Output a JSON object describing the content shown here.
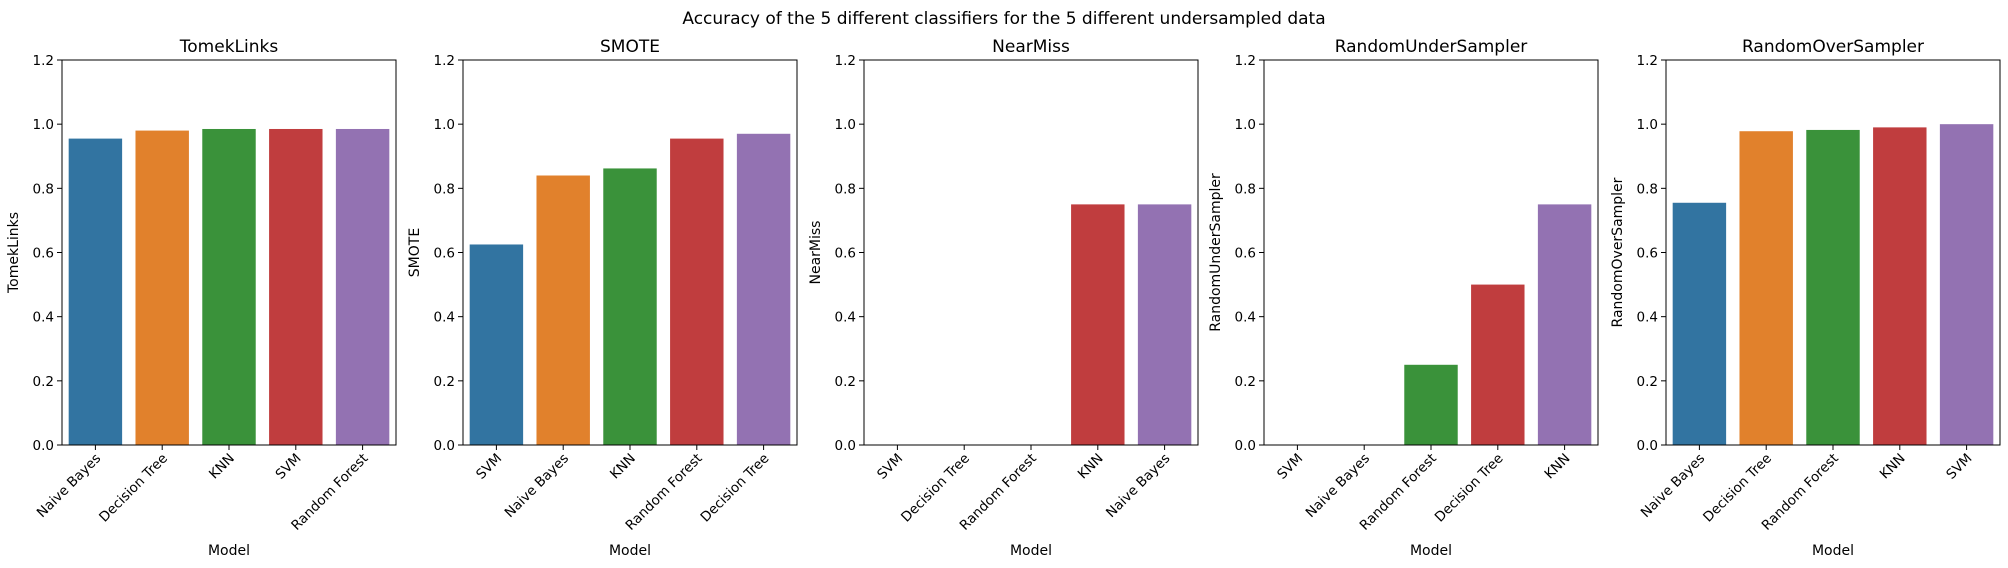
{
  "chart_data": {
    "suptitle": "Accuracy of the 5 different classifiers for the 5 different undersampled data",
    "type": "bar",
    "ylim": [
      0,
      1.2
    ],
    "yticks": [
      "0.0",
      "0.2",
      "0.4",
      "0.6",
      "0.8",
      "1.0",
      "1.2"
    ],
    "xlabel": "Model",
    "colors": [
      "#3274a1",
      "#e1812c",
      "#3a923a",
      "#c03d3e",
      "#9372b2"
    ],
    "panels": [
      {
        "title": "TomekLinks",
        "ylabel": "TomekLinks",
        "categories": [
          "Naive Bayes",
          "Decision Tree",
          "KNN",
          "SVM",
          "Random Forest"
        ],
        "values": [
          0.955,
          0.98,
          0.985,
          0.985,
          0.985
        ]
      },
      {
        "title": "SMOTE",
        "ylabel": "SMOTE",
        "categories": [
          "SVM",
          "Naive Bayes",
          "KNN",
          "Random Forest",
          "Decision Tree"
        ],
        "values": [
          0.625,
          0.84,
          0.862,
          0.955,
          0.97
        ]
      },
      {
        "title": "NearMiss",
        "ylabel": "NearMiss",
        "categories": [
          "SVM",
          "Decision Tree",
          "Random Forest",
          "KNN",
          "Naive Bayes"
        ],
        "values": [
          0.0,
          0.0,
          0.0,
          0.75,
          0.75
        ]
      },
      {
        "title": "RandomUnderSampler",
        "ylabel": "RandomUnderSampler",
        "categories": [
          "SVM",
          "Naive Bayes",
          "Random Forest",
          "Decision Tree",
          "KNN"
        ],
        "values": [
          0.0,
          0.0,
          0.25,
          0.5,
          0.75
        ]
      },
      {
        "title": "RandomOverSampler",
        "ylabel": "RandomOverSampler",
        "categories": [
          "Naive Bayes",
          "Decision Tree",
          "Random Forest",
          "KNN",
          "SVM"
        ],
        "values": [
          0.755,
          0.978,
          0.982,
          0.99,
          1.0
        ]
      }
    ]
  }
}
